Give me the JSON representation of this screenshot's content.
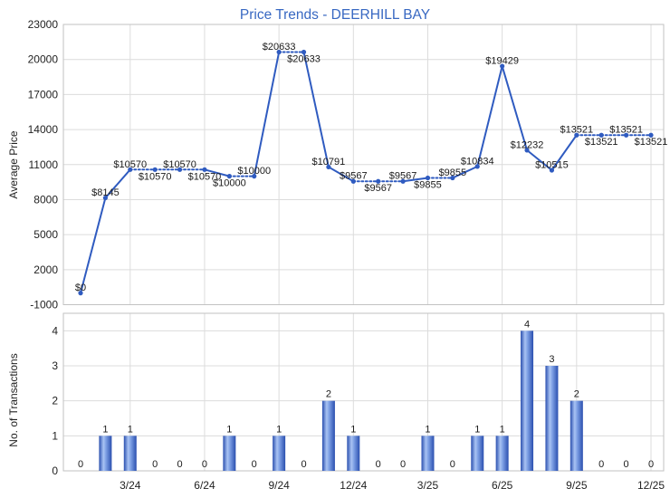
{
  "title": "Price Trends - DEERHILL BAY",
  "colors": {
    "title": "#3868c2",
    "line": "#2f5bc0",
    "bar": "#2a4faf",
    "bar_highlight": "#a9c3f3",
    "grid": "#dcdcdc"
  },
  "chart_data": [
    {
      "type": "line",
      "ylabel": "Average Price",
      "ylim": [
        -1000,
        23000
      ],
      "yticks": [
        23000,
        20000,
        17000,
        14000,
        11000,
        8000,
        5000,
        2000,
        -1000
      ],
      "grid": true,
      "x": [
        "1/24",
        "2/24",
        "3/24",
        "4/24",
        "5/24",
        "6/24",
        "7/24",
        "8/24",
        "9/24",
        "10/24",
        "11/24",
        "12/24",
        "1/25",
        "2/25",
        "3/25",
        "4/25",
        "5/25",
        "6/25",
        "7/25",
        "8/25",
        "9/25",
        "10/25",
        "11/25",
        "12/25"
      ],
      "values": [
        0,
        8145,
        10570,
        10570,
        10570,
        10570,
        10000,
        10000,
        20633,
        20633,
        10791,
        9567,
        9567,
        9567,
        9855,
        9855,
        10834,
        19429,
        12232,
        10515,
        13521,
        13521,
        13521,
        13521
      ],
      "data_labels": [
        "$0",
        "$8145",
        "$10570",
        "$10570",
        "$10570",
        "$10570",
        "$10000",
        "$10000",
        "$20633",
        "$20633",
        "$10791",
        "$9567",
        "$9567",
        "$9567",
        "$9855",
        "$9855",
        "$10834",
        "$19429",
        "$12232",
        "$10515",
        "$13521",
        "$13521",
        "$13521",
        "$13521"
      ]
    },
    {
      "type": "bar",
      "ylabel": "No. of Transactions",
      "ylim": [
        0,
        4.5
      ],
      "yticks": [
        4,
        3,
        2,
        1,
        0
      ],
      "grid": true,
      "x": [
        "1/24",
        "2/24",
        "3/24",
        "4/24",
        "5/24",
        "6/24",
        "7/24",
        "8/24",
        "9/24",
        "10/24",
        "11/24",
        "12/24",
        "1/25",
        "2/25",
        "3/25",
        "4/25",
        "5/25",
        "6/25",
        "7/25",
        "8/25",
        "9/25",
        "10/25",
        "11/25",
        "12/25"
      ],
      "xticks": [
        "3/24",
        "6/24",
        "9/24",
        "12/24",
        "3/25",
        "6/25",
        "9/25",
        "12/25"
      ],
      "values": [
        0,
        1,
        1,
        0,
        0,
        0,
        1,
        0,
        1,
        0,
        2,
        1,
        0,
        0,
        1,
        0,
        1,
        1,
        4,
        3,
        2,
        0,
        0,
        0
      ]
    }
  ]
}
